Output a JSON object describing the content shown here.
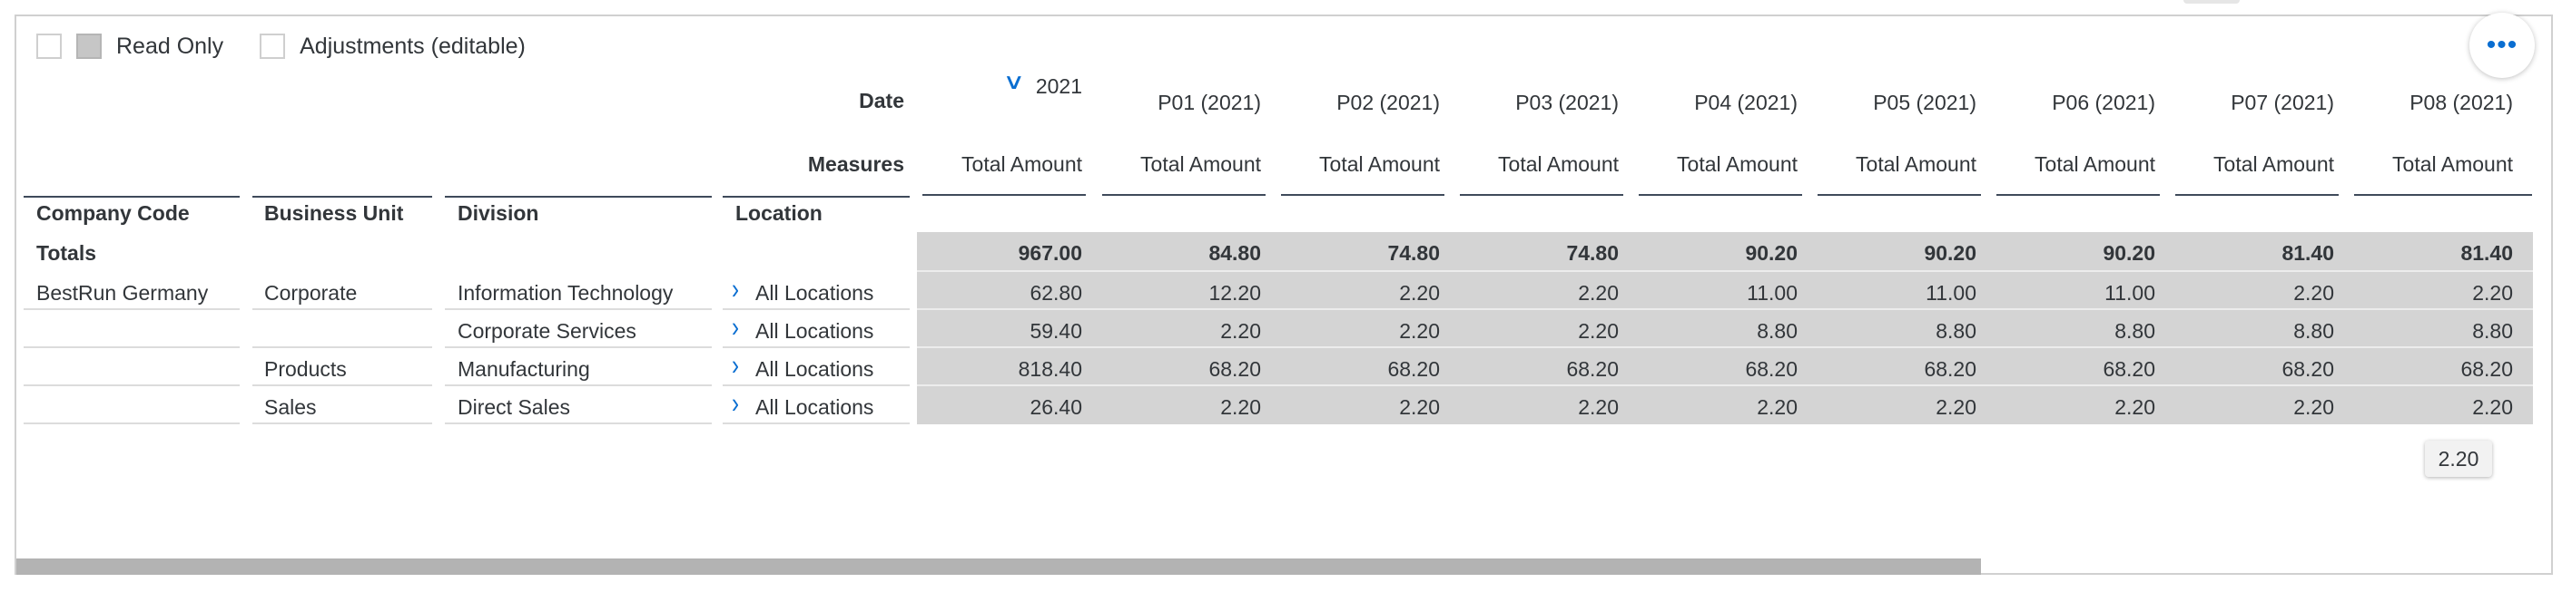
{
  "legend": {
    "read_only": "Read Only",
    "adjustments": "Adjustments (editable)"
  },
  "more_button": "•••",
  "header": {
    "date_label": "Date",
    "measures_label": "Measures",
    "columns": [
      {
        "date": "2021",
        "measure": "Total Amount"
      },
      {
        "date": "P01 (2021)",
        "measure": "Total Amount"
      },
      {
        "date": "P02 (2021)",
        "measure": "Total Amount"
      },
      {
        "date": "P03 (2021)",
        "measure": "Total Amount"
      },
      {
        "date": "P04 (2021)",
        "measure": "Total Amount"
      },
      {
        "date": "P05 (2021)",
        "measure": "Total Amount"
      },
      {
        "date": "P06 (2021)",
        "measure": "Total Amount"
      },
      {
        "date": "P07 (2021)",
        "measure": "Total Amount"
      },
      {
        "date": "P08 (2021)",
        "measure": "Total Amount"
      }
    ]
  },
  "dims": {
    "company_code": "Company Code",
    "business_unit": "Business Unit",
    "division": "Division",
    "location": "Location"
  },
  "totals": {
    "label": "Totals",
    "values": [
      "967.00",
      "84.80",
      "74.80",
      "74.80",
      "90.20",
      "90.20",
      "90.20",
      "81.40",
      "81.40"
    ]
  },
  "rows": [
    {
      "company": "BestRun Germany",
      "unit": "Corporate",
      "division": "Information Technology",
      "location": "All Locations",
      "values": [
        "62.80",
        "12.20",
        "2.20",
        "2.20",
        "11.00",
        "11.00",
        "11.00",
        "2.20",
        "2.20"
      ]
    },
    {
      "company": "",
      "unit": "",
      "division": "Corporate Services",
      "location": "All Locations",
      "values": [
        "59.40",
        "2.20",
        "2.20",
        "2.20",
        "8.80",
        "8.80",
        "8.80",
        "8.80",
        "8.80"
      ]
    },
    {
      "company": "",
      "unit": "Products",
      "division": "Manufacturing",
      "location": "All Locations",
      "values": [
        "818.40",
        "68.20",
        "68.20",
        "68.20",
        "68.20",
        "68.20",
        "68.20",
        "68.20",
        "68.20"
      ]
    },
    {
      "company": "",
      "unit": "Sales",
      "division": "Direct Sales",
      "location": "All Locations",
      "values": [
        "26.40",
        "2.20",
        "2.20",
        "2.20",
        "2.20",
        "2.20",
        "2.20",
        "2.20",
        "2.20"
      ]
    }
  ],
  "tooltip": "2.20"
}
